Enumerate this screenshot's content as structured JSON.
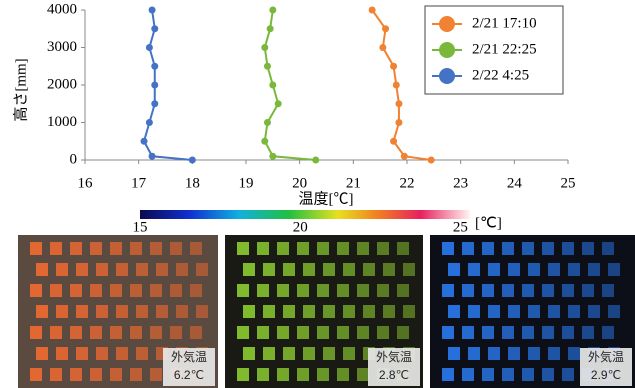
{
  "chart_data": {
    "type": "line",
    "xlabel": "温度[℃]",
    "ylabel": "高さ[mm]",
    "heights": [
      0,
      100,
      500,
      1000,
      1500,
      2000,
      2500,
      3000,
      3500,
      4000
    ],
    "series": [
      {
        "name": "2/21 17:10",
        "color": "#f08232",
        "values": [
          22.45,
          21.95,
          21.75,
          21.85,
          21.85,
          21.8,
          21.75,
          21.55,
          21.6,
          21.35
        ]
      },
      {
        "name": "2/21 22:25",
        "color": "#79b83a",
        "values": [
          20.3,
          19.5,
          19.35,
          19.4,
          19.6,
          19.5,
          19.4,
          19.35,
          19.45,
          19.5
        ]
      },
      {
        "name": "2/22 4:25",
        "color": "#4472c4",
        "values": [
          18.0,
          17.25,
          17.1,
          17.2,
          17.3,
          17.3,
          17.3,
          17.2,
          17.3,
          17.25
        ]
      }
    ],
    "xlim": [
      16,
      25
    ],
    "xticks": [
      16,
      17,
      18,
      19,
      20,
      21,
      22,
      23,
      24,
      25
    ],
    "ylim": [
      0,
      4000
    ],
    "yticks": [
      0,
      1000,
      2000,
      3000,
      4000
    ],
    "legend": "upper right"
  },
  "colorbar": {
    "lim": [
      15,
      25.3
    ],
    "ticks": [
      15,
      20,
      25
    ],
    "unit": "[℃]"
  },
  "photos": [
    {
      "caption": "外気温",
      "temperature": "6.2℃"
    },
    {
      "caption": "外気温",
      "temperature": "2.8℃"
    },
    {
      "caption": "外気温",
      "temperature": "2.9℃"
    }
  ]
}
